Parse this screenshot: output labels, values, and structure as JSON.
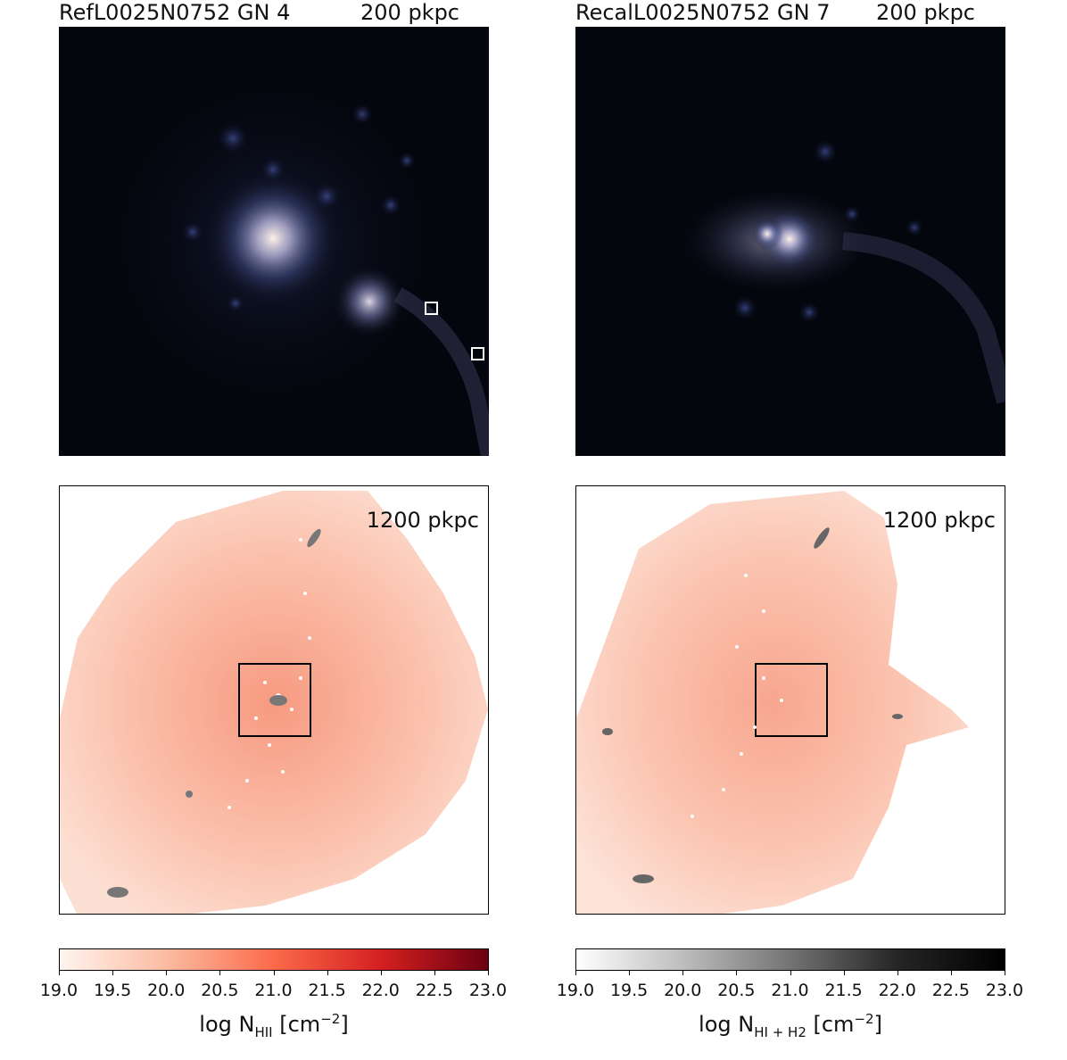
{
  "panels": {
    "top_left": {
      "title": "RefL0025N0752 GN 4",
      "scale": "200 pkpc"
    },
    "top_right": {
      "title": "RecalL0025N0752 GN 7",
      "scale": "200 pkpc"
    },
    "bottom_left": {
      "scale": "1200 pkpc"
    },
    "bottom_right": {
      "scale": "1200 pkpc"
    }
  },
  "colorbars": {
    "left": {
      "ticks": [
        "19.0",
        "19.5",
        "20.0",
        "20.5",
        "21.0",
        "21.5",
        "22.0",
        "22.5",
        "23.0"
      ],
      "label_prefix": "log N",
      "label_sub": "HII",
      "label_unit": " [cm",
      "label_sup": "−2",
      "label_end": "]",
      "color_low": "#fff4ef",
      "color_high": "#6b0010"
    },
    "right": {
      "ticks": [
        "19.0",
        "19.5",
        "20.0",
        "20.5",
        "21.0",
        "21.5",
        "22.0",
        "22.5",
        "23.0"
      ],
      "label_prefix": "log N",
      "label_sub": "HI + H2",
      "label_unit": " [cm",
      "label_sup": "−2",
      "label_end": "]",
      "color_low": "#ffffff",
      "color_high": "#000000"
    }
  }
}
